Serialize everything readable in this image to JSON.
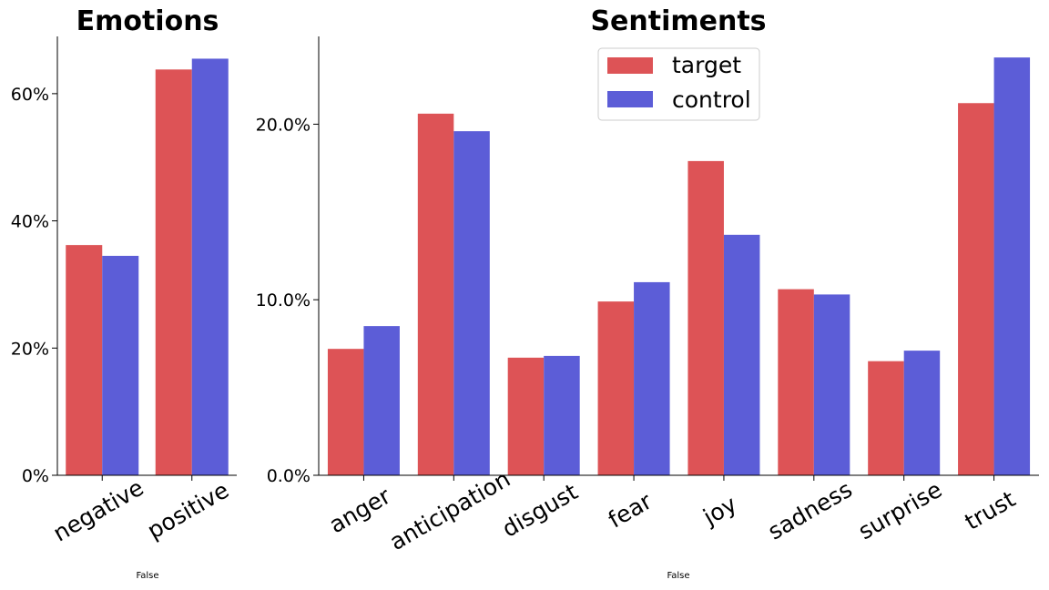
{
  "chart_data": [
    {
      "type": "bar",
      "title": "Emotions",
      "xlabel": "False",
      "ylabel": "",
      "categories": [
        "negative",
        "positive"
      ],
      "series": [
        {
          "name": "target",
          "values": [
            36.2,
            63.8
          ]
        },
        {
          "name": "control",
          "values": [
            34.5,
            65.5
          ]
        }
      ],
      "ylim": [
        0,
        69
      ],
      "yticks": [
        0,
        20,
        40,
        60
      ],
      "ytick_labels": [
        "0%",
        "20%",
        "40%",
        "60%"
      ]
    },
    {
      "type": "bar",
      "title": "Sentiments",
      "xlabel": "False",
      "ylabel": "",
      "categories": [
        "anger",
        "anticipation",
        "disgust",
        "fear",
        "joy",
        "sadness",
        "surprise",
        "trust"
      ],
      "series": [
        {
          "name": "target",
          "values": [
            7.2,
            20.6,
            6.7,
            9.9,
            17.9,
            10.6,
            6.5,
            21.2
          ]
        },
        {
          "name": "control",
          "values": [
            8.5,
            19.6,
            6.8,
            11.0,
            13.7,
            10.3,
            7.1,
            23.8
          ]
        }
      ],
      "ylim": [
        0,
        25
      ],
      "yticks": [
        0,
        10,
        20
      ],
      "ytick_labels": [
        "0.0%",
        "10.0%",
        "20.0%"
      ],
      "legend": {
        "position": "top-center",
        "entries": [
          "target",
          "control"
        ]
      }
    }
  ],
  "colors": {
    "target": "#dd5356",
    "control": "#5c5dd7"
  }
}
